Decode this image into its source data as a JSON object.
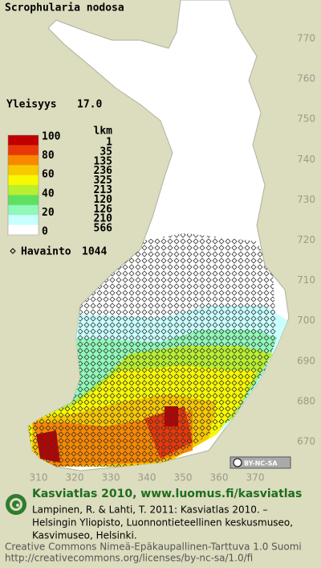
{
  "header": {
    "title": "Scrophularia nodosa",
    "frequency_label": "Yleisyys",
    "frequency_value": "17.0"
  },
  "legend": {
    "count_header": "lkm",
    "levels": [
      "100",
      "80",
      "60",
      "40",
      "20",
      "0"
    ],
    "colors": [
      "#c00000",
      "#e83808",
      "#f88800",
      "#f8c800",
      "#f8f800",
      "#b8f030",
      "#60e060",
      "#90f8b8",
      "#c8ffff",
      "#ffffff"
    ],
    "counts": [
      "1",
      "35",
      "135",
      "236",
      "325",
      "213",
      "120",
      "126",
      "210",
      "566"
    ],
    "observation_label": "Havainto",
    "observation_count": "1044"
  },
  "axes": {
    "right": [
      "770",
      "760",
      "750",
      "740",
      "730",
      "720",
      "710",
      "700",
      "690",
      "680",
      "670"
    ],
    "bottom": [
      "310",
      "320",
      "330",
      "340",
      "350",
      "360",
      "370"
    ]
  },
  "badge": "BY-NC-SA",
  "footer": {
    "heading": "Kasviatlas 2010, www.luomus.fi/kasviatlas",
    "lines": [
      "Lampinen, R. & Lahti, T. 2011: Kasviatlas 2010. –",
      "Helsingin Yliopisto, Luonnontieteellinen keskusmuseo,",
      "Kasvimuseo, Helsinki."
    ],
    "license": [
      "Creative Commons Nimeä-Epäkaupallinen-Tarttuva 1.0 Suomi",
      "http://creativecommons.org/licenses/by-nc-sa/1.0/fi"
    ]
  }
}
